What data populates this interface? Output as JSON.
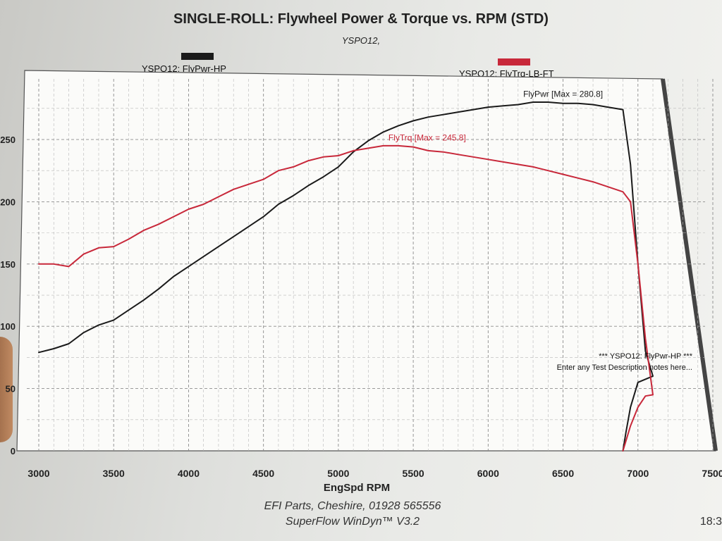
{
  "chart_data": {
    "type": "line",
    "title": "SINGLE-ROLL: Flywheel Power & Torque vs. RPM (STD)",
    "subtitle": "YSPO12,",
    "xlabel": "EngSpd RPM",
    "ylabel": "",
    "xlim": [
      3000,
      7500
    ],
    "ylim": [
      0,
      280
    ],
    "x_ticks": [
      "3000",
      "3500",
      "4000",
      "4500",
      "5000",
      "5500",
      "6000",
      "6500",
      "7000",
      "7500"
    ],
    "y_ticks": [
      "0",
      "50",
      "100",
      "150",
      "200",
      "250"
    ],
    "grid": true,
    "legend": [
      {
        "label": "YSPO12: FlyPwr-HP",
        "color": "#1a1a1a"
      },
      {
        "label": "YSPO12: FlyTrq-LB-FT",
        "color": "#c8283a"
      }
    ],
    "series": [
      {
        "name": "YSPO12: FlyPwr-HP",
        "color": "#1a1a1a",
        "x": [
          3000,
          3100,
          3200,
          3300,
          3400,
          3500,
          3600,
          3700,
          3800,
          3900,
          4000,
          4100,
          4200,
          4300,
          4400,
          4500,
          4600,
          4700,
          4800,
          4900,
          5000,
          5100,
          5200,
          5300,
          5400,
          5500,
          5600,
          5700,
          5800,
          5900,
          6000,
          6100,
          6200,
          6300,
          6400,
          6500,
          6600,
          6700,
          6800,
          6900,
          6950,
          7000,
          7050,
          7100,
          7000,
          6950,
          6920,
          6900
        ],
        "y": [
          79,
          82,
          86,
          95,
          101,
          105,
          113,
          121,
          130,
          140,
          148,
          156,
          164,
          172,
          180,
          188,
          198,
          205,
          213,
          220,
          228,
          240,
          249,
          256,
          261,
          265,
          268,
          270,
          272,
          274,
          276,
          277,
          278,
          280,
          280,
          279,
          279,
          278,
          276,
          274,
          230,
          150,
          80,
          60,
          55,
          35,
          15,
          0
        ]
      },
      {
        "name": "YSPO12: FlyTrq-LB-FT",
        "color": "#c8283a",
        "x": [
          3000,
          3100,
          3200,
          3300,
          3400,
          3500,
          3600,
          3700,
          3800,
          3900,
          4000,
          4100,
          4200,
          4300,
          4400,
          4500,
          4600,
          4700,
          4800,
          4900,
          5000,
          5100,
          5200,
          5300,
          5400,
          5500,
          5600,
          5700,
          5800,
          5900,
          6000,
          6100,
          6200,
          6300,
          6400,
          6500,
          6600,
          6700,
          6800,
          6900,
          6950,
          7000,
          7050,
          7100,
          7050,
          7000,
          6950,
          6900
        ],
        "y": [
          150,
          150,
          148,
          158,
          163,
          164,
          170,
          177,
          182,
          188,
          194,
          198,
          204,
          210,
          214,
          218,
          225,
          228,
          233,
          236,
          237,
          241,
          243,
          245,
          245,
          244,
          241,
          240,
          238,
          236,
          234,
          232,
          230,
          228,
          225,
          222,
          219,
          216,
          212,
          208,
          200,
          150,
          90,
          45,
          44,
          35,
          20,
          0
        ]
      }
    ],
    "annotations": [
      {
        "text": "FlyPwr [Max = 280.8]",
        "x": 6300,
        "y": 283
      },
      {
        "text": "FlyTrq [Max = 245.8]",
        "x": 5400,
        "y": 248
      }
    ],
    "notes": [
      "*** YSPO12: FlyPwr-HP     ***",
      "Enter any Test Description notes here..."
    ]
  },
  "footer": {
    "line1": "EFI Parts, Cheshire, 01928 565556",
    "line2": "SuperFlow WinDyn™ V3.2",
    "time": "18:3"
  }
}
